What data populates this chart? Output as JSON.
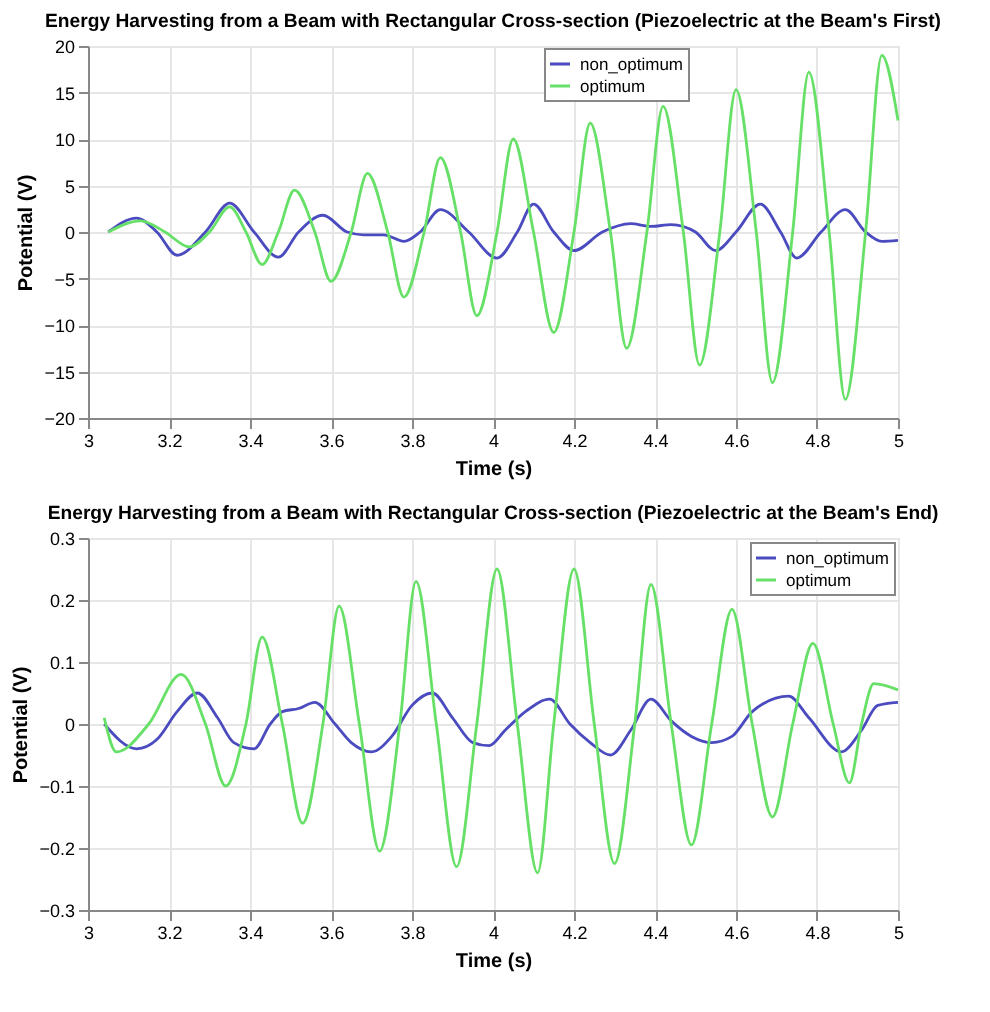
{
  "chart_data": [
    {
      "type": "line",
      "title": "Energy Harvesting from a Beam with Rectangular Cross-section (Piezoelectric at the Beam's First)",
      "xlabel": "Time (s)",
      "ylabel": "Potential (V)",
      "xlim": [
        3,
        5
      ],
      "xticks": [
        3,
        3.2,
        3.4,
        3.6,
        3.8,
        4,
        4.2,
        4.4,
        4.6,
        4.8,
        5
      ],
      "ylim": [
        -20,
        20
      ],
      "yticks": [
        -20,
        -15,
        -10,
        -5,
        0,
        5,
        10,
        15,
        20
      ],
      "grid": true,
      "legend": "top right",
      "line_style": "solid",
      "marker": "none",
      "series": [
        {
          "name": "non_optimum",
          "color": "#4b4bc0",
          "x": [
            3.05,
            3.12,
            3.17,
            3.22,
            3.29,
            3.35,
            3.41,
            3.47,
            3.52,
            3.58,
            3.64,
            3.68,
            3.73,
            3.78,
            3.82,
            3.87,
            3.94,
            4.01,
            4.06,
            4.1,
            4.15,
            4.2,
            4.27,
            4.34,
            4.39,
            4.44,
            4.5,
            4.55,
            4.6,
            4.66,
            4.71,
            4.75,
            4.81,
            4.87,
            4.92,
            4.96,
            5.0
          ],
          "values": [
            0,
            1.5,
            0,
            -2.5,
            0,
            3.1,
            0,
            -2.7,
            0,
            1.8,
            0,
            -0.3,
            -0.3,
            -1.0,
            0,
            2.4,
            0,
            -2.8,
            0,
            3.0,
            0,
            -2.0,
            0,
            0.9,
            0.6,
            0.8,
            0,
            -2.0,
            0,
            3.0,
            0,
            -2.8,
            0,
            2.4,
            0,
            -1.0,
            -0.9
          ]
        },
        {
          "name": "optimum",
          "color": "#66e066",
          "x": [
            3.05,
            3.13,
            3.19,
            3.25,
            3.3,
            3.35,
            3.39,
            3.43,
            3.47,
            3.51,
            3.56,
            3.6,
            3.65,
            3.69,
            3.74,
            3.78,
            3.83,
            3.87,
            3.92,
            3.96,
            4.01,
            4.05,
            4.1,
            4.15,
            4.2,
            4.24,
            4.29,
            4.33,
            4.38,
            4.42,
            4.47,
            4.51,
            4.56,
            4.6,
            4.65,
            4.69,
            4.74,
            4.78,
            4.83,
            4.87,
            4.92,
            4.96,
            5.0
          ],
          "values": [
            0,
            1.2,
            0,
            -1.6,
            0,
            2.7,
            0,
            -3.5,
            0,
            4.5,
            0,
            -5.3,
            0,
            6.3,
            0,
            -7,
            0,
            8,
            0,
            -9,
            0,
            10,
            0,
            -10.8,
            0,
            11.7,
            0,
            -12.5,
            0,
            13.5,
            0,
            -14.3,
            0,
            15.3,
            0,
            -16.2,
            0,
            17.2,
            0,
            -18,
            0,
            19,
            12
          ]
        }
      ]
    },
    {
      "type": "line",
      "title": "Energy Harvesting from a Beam with Rectangular Cross-section (Piezoelectric at the Beam's End)",
      "xlabel": "Time (s)",
      "ylabel": "Potential (V)",
      "xlim": [
        3,
        5
      ],
      "xticks": [
        3,
        3.2,
        3.4,
        3.6,
        3.8,
        4,
        4.2,
        4.4,
        4.6,
        4.8,
        5
      ],
      "ylim": [
        -0.3,
        0.3
      ],
      "yticks": [
        -0.3,
        -0.2,
        -0.1,
        0,
        0.1,
        0.2,
        0.3
      ],
      "grid": true,
      "legend": "top right",
      "line_style": "solid",
      "marker": "none",
      "series": [
        {
          "name": "non_optimum",
          "color": "#4b4bc0",
          "x": [
            3.04,
            3.12,
            3.17,
            3.22,
            3.27,
            3.32,
            3.36,
            3.41,
            3.45,
            3.48,
            3.52,
            3.56,
            3.61,
            3.65,
            3.7,
            3.75,
            3.8,
            3.85,
            3.9,
            3.95,
            3.99,
            4.03,
            4.08,
            4.14,
            4.19,
            4.24,
            4.29,
            4.34,
            4.39,
            4.44,
            4.49,
            4.54,
            4.59,
            4.64,
            4.73,
            4.78,
            4.86,
            4.91,
            4.95,
            5.0
          ],
          "values": [
            0,
            -0.04,
            -0.025,
            0.02,
            0.05,
            0.01,
            -0.03,
            -0.04,
            0,
            0.02,
            0.025,
            0.035,
            0,
            -0.03,
            -0.045,
            -0.02,
            0.03,
            0.05,
            0.01,
            -0.03,
            -0.035,
            -0.01,
            0.02,
            0.04,
            0,
            -0.03,
            -0.05,
            -0.01,
            0.04,
            0.005,
            -0.02,
            -0.03,
            -0.02,
            0.02,
            0.045,
            0.01,
            -0.045,
            -0.01,
            0.03,
            0.035
          ]
        },
        {
          "name": "optimum",
          "color": "#66e066",
          "x": [
            3.04,
            3.07,
            3.15,
            3.23,
            3.29,
            3.34,
            3.39,
            3.43,
            3.48,
            3.53,
            3.58,
            3.62,
            3.67,
            3.72,
            3.77,
            3.81,
            3.86,
            3.91,
            3.96,
            4.01,
            4.06,
            4.11,
            4.15,
            4.2,
            4.25,
            4.3,
            4.35,
            4.39,
            4.44,
            4.49,
            4.54,
            4.59,
            4.64,
            4.69,
            4.74,
            4.79,
            4.84,
            4.88,
            4.91,
            4.94,
            5.0
          ],
          "values": [
            0.01,
            -0.045,
            0,
            0.08,
            0,
            -0.1,
            0,
            0.14,
            0,
            -0.16,
            0,
            0.19,
            0,
            -0.205,
            0,
            0.23,
            0,
            -0.23,
            0,
            0.25,
            0,
            -0.24,
            0,
            0.25,
            0,
            -0.225,
            0,
            0.225,
            0,
            -0.195,
            0,
            0.185,
            0,
            -0.15,
            0,
            0.13,
            0,
            -0.095,
            0,
            0.065,
            0.055
          ]
        }
      ]
    }
  ]
}
